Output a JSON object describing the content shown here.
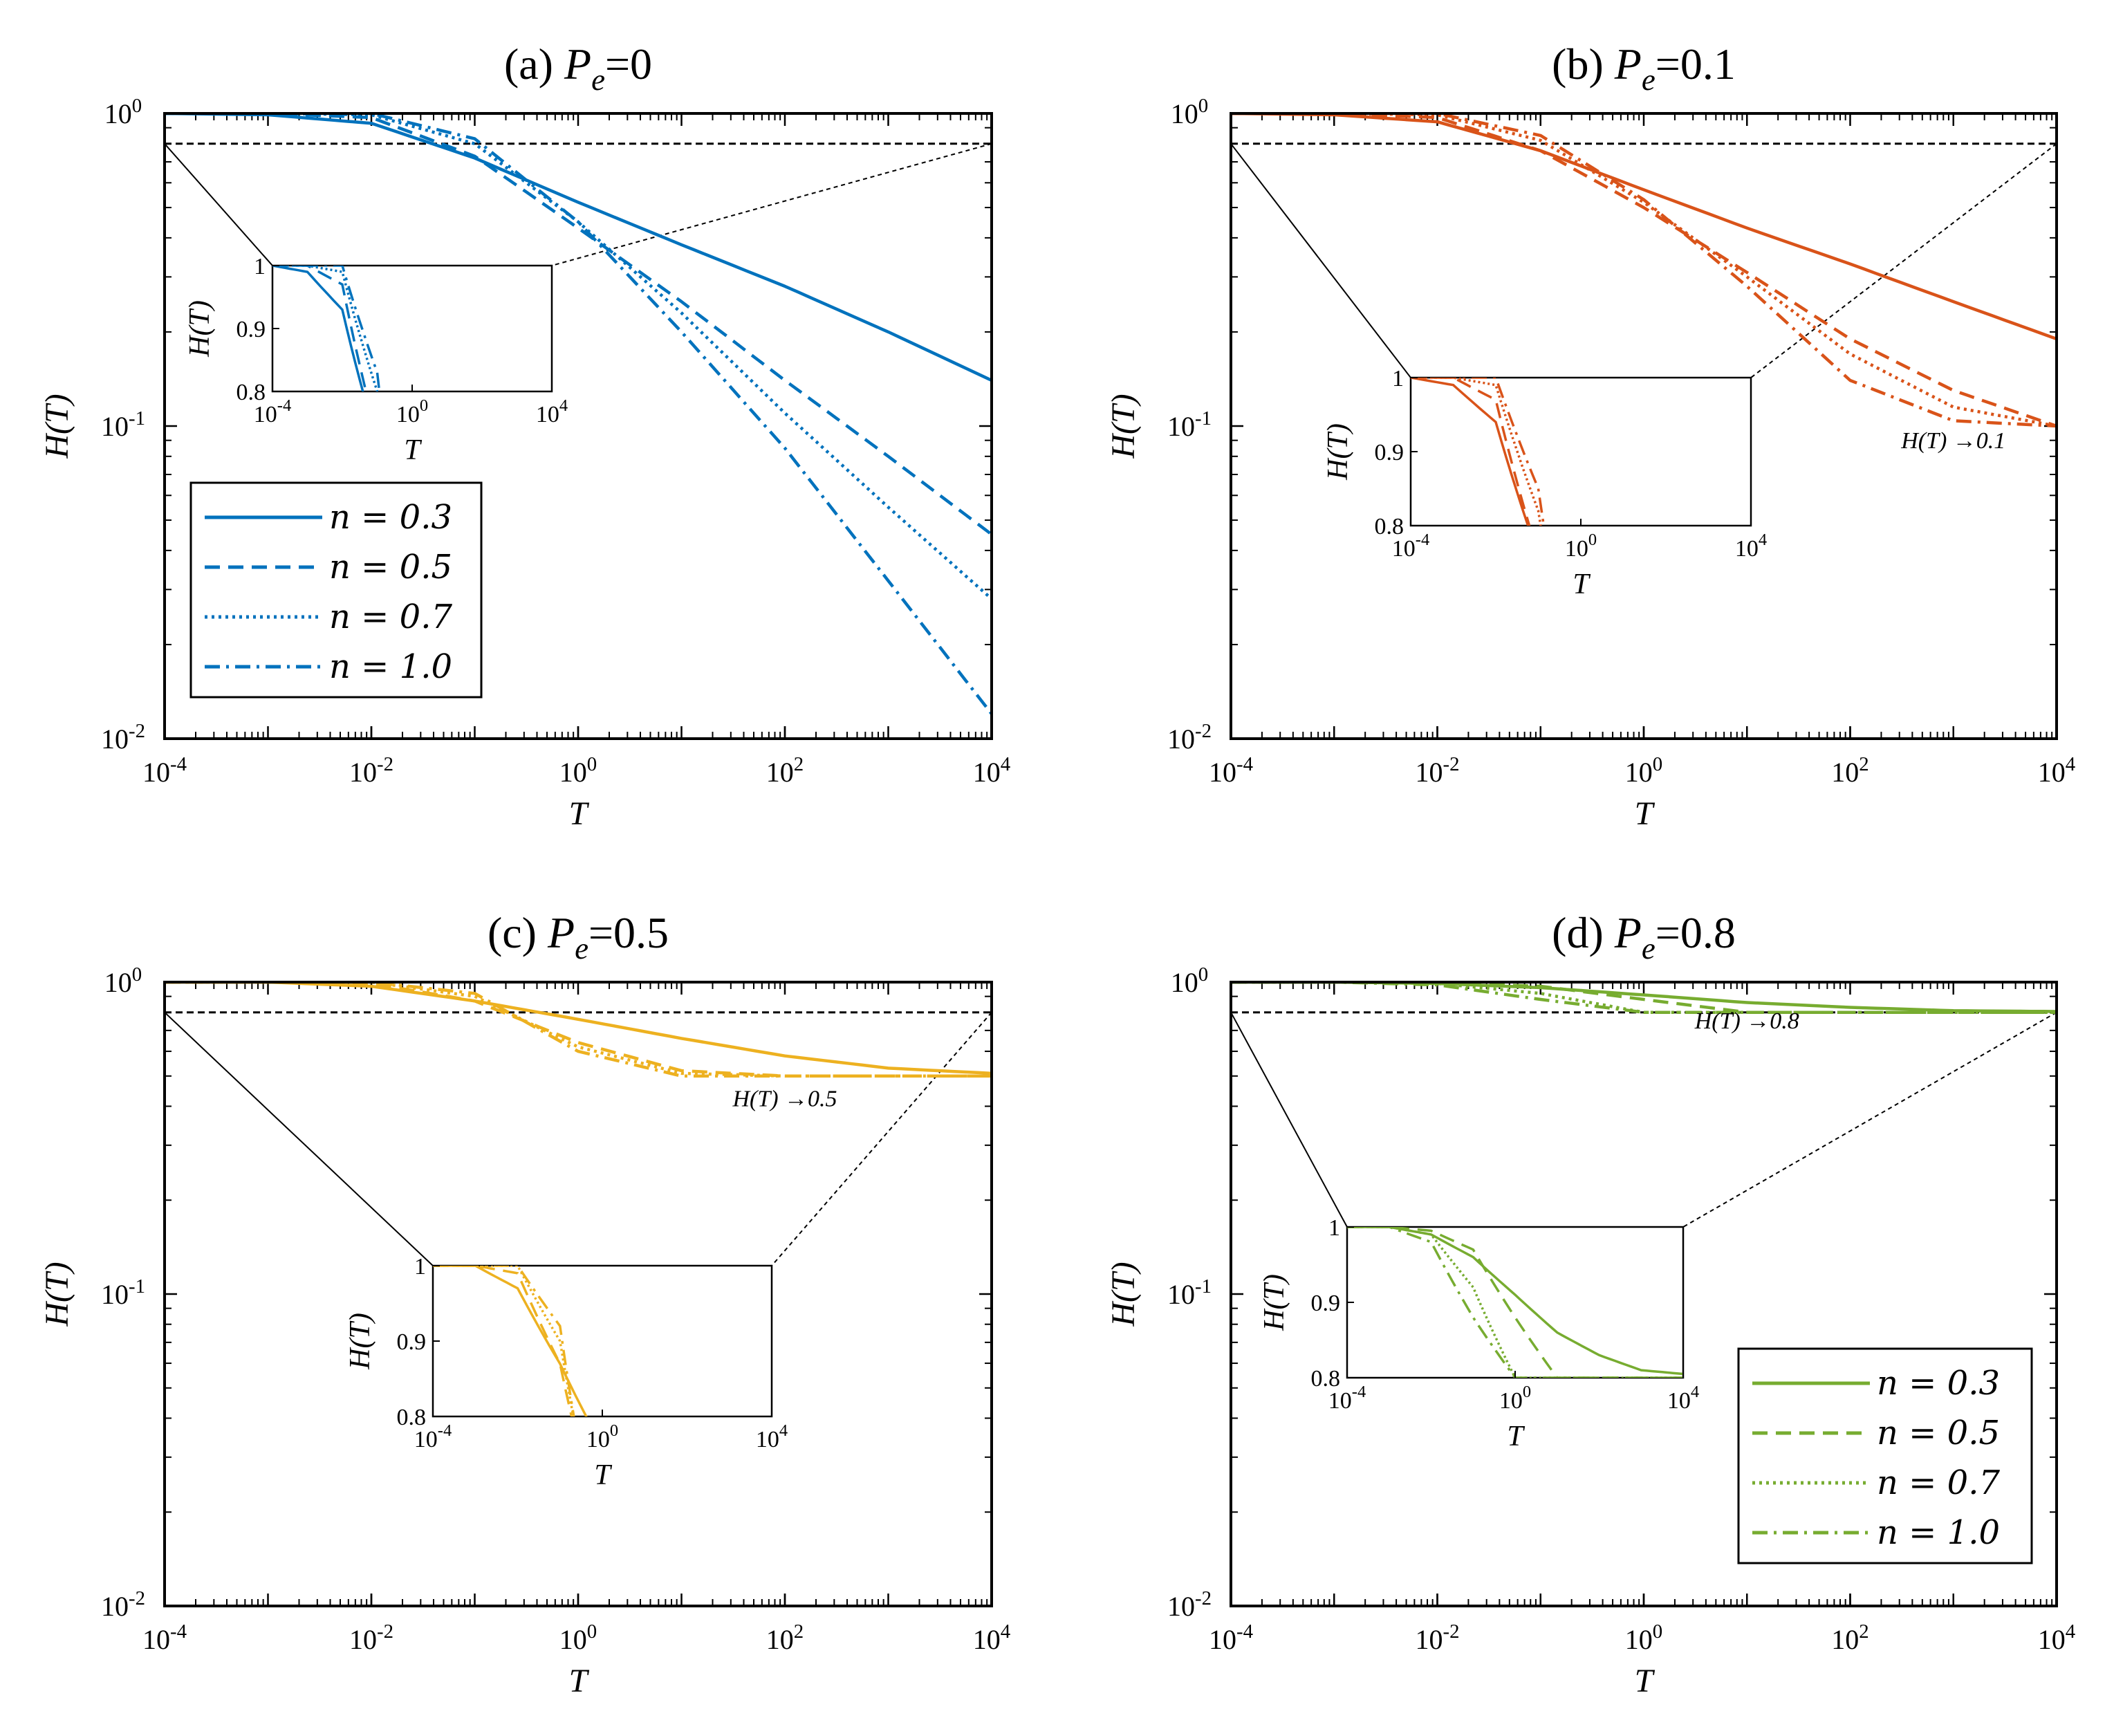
{
  "figure": {
    "common": {
      "x_scale": "log",
      "y_scale": "log",
      "xlim": [
        0.0001,
        10000
      ],
      "ylim": [
        0.01,
        1
      ],
      "xlabel": "T",
      "ylabel": "H(T)",
      "x_ticks": [
        {
          "value": 0.0001,
          "base": "10",
          "exp": "-4"
        },
        {
          "value": 0.01,
          "base": "10",
          "exp": "-2"
        },
        {
          "value": 1,
          "base": "10",
          "exp": "0"
        },
        {
          "value": 100,
          "base": "10",
          "exp": "2"
        },
        {
          "value": 10000,
          "base": "10",
          "exp": "4"
        }
      ],
      "y_ticks": [
        {
          "value": 0.01,
          "base": "10",
          "exp": "-2"
        },
        {
          "value": 0.1,
          "base": "10",
          "exp": "-1"
        },
        {
          "value": 1,
          "base": "10",
          "exp": "0"
        }
      ],
      "reference_line": {
        "y": 0.8,
        "style": "dashed",
        "color": "#000000"
      },
      "inset": {
        "xlim": [
          0.0001,
          10000
        ],
        "ylim": [
          0.8,
          1.0
        ],
        "x_ticks": [
          {
            "value": 0.0001,
            "base": "10",
            "exp": "-4"
          },
          {
            "value": 1,
            "base": "10",
            "exp": "0"
          },
          {
            "value": 10000,
            "base": "10",
            "exp": "4"
          }
        ],
        "y_ticks": [
          {
            "value": 0.8,
            "label": "0.8"
          },
          {
            "value": 0.9,
            "label": "0.9"
          },
          {
            "value": 1.0,
            "label": "1"
          }
        ],
        "xlabel": "T",
        "ylabel": "H(T)"
      },
      "legend_entries": [
        {
          "text": "n = 0.3",
          "style": "solid"
        },
        {
          "text": "n = 0.5",
          "style": "dashed"
        },
        {
          "text": "n = 0.7",
          "style": "dotted"
        },
        {
          "text": "n = 1.0",
          "style": "dashdot"
        }
      ]
    }
  },
  "chart_data": [
    {
      "type": "line",
      "panel": "a",
      "title": {
        "prefix": "(a) ",
        "var": "P",
        "sub": "e",
        "suffix": "=0"
      },
      "Pe": 0,
      "color": "#0072BD",
      "annotation": null,
      "series": [
        {
          "name": "n = 0.3",
          "style": "solid",
          "x": [
            0.0001,
            0.001,
            0.01,
            0.1,
            1,
            10,
            100,
            1000,
            10000
          ],
          "y": [
            1.0,
            0.99,
            0.93,
            0.72,
            0.52,
            0.38,
            0.28,
            0.2,
            0.14
          ]
        },
        {
          "name": "n = 0.5",
          "style": "dashed",
          "x": [
            0.0001,
            0.001,
            0.01,
            0.1,
            1,
            10,
            100,
            1000,
            10000
          ],
          "y": [
            1.0,
            1.0,
            0.97,
            0.73,
            0.43,
            0.25,
            0.14,
            0.08,
            0.045
          ]
        },
        {
          "name": "n = 0.7",
          "style": "dotted",
          "x": [
            0.0001,
            0.001,
            0.01,
            0.1,
            1,
            10,
            100,
            1000,
            10000
          ],
          "y": [
            1.0,
            1.0,
            0.99,
            0.8,
            0.45,
            0.23,
            0.11,
            0.055,
            0.028
          ]
        },
        {
          "name": "n = 1.0",
          "style": "dashdot",
          "x": [
            0.0001,
            0.001,
            0.01,
            0.1,
            1,
            10,
            100,
            1000,
            10000
          ],
          "y": [
            1.0,
            1.0,
            1.0,
            0.83,
            0.45,
            0.2,
            0.085,
            0.032,
            0.012
          ]
        }
      ]
    },
    {
      "type": "line",
      "panel": "b",
      "title": {
        "prefix": "(b) ",
        "var": "P",
        "sub": "e",
        "suffix": "=0.1"
      },
      "Pe": 0.1,
      "color": "#D95319",
      "annotation": {
        "text": "H(T) →0.1",
        "x": 1000,
        "y": 0.085
      },
      "series": [
        {
          "name": "n = 0.3",
          "style": "solid",
          "x": [
            0.0001,
            0.001,
            0.01,
            0.1,
            1,
            10,
            100,
            1000,
            10000
          ],
          "y": [
            1.0,
            0.99,
            0.94,
            0.76,
            0.57,
            0.43,
            0.33,
            0.25,
            0.19
          ]
        },
        {
          "name": "n = 0.5",
          "style": "dashed",
          "x": [
            0.0001,
            0.001,
            0.01,
            0.1,
            1,
            10,
            100,
            1000,
            10000
          ],
          "y": [
            1.0,
            1.0,
            0.97,
            0.76,
            0.5,
            0.31,
            0.19,
            0.13,
            0.1
          ]
        },
        {
          "name": "n = 0.7",
          "style": "dotted",
          "x": [
            0.0001,
            0.001,
            0.01,
            0.1,
            1,
            10,
            100,
            1000,
            10000
          ],
          "y": [
            1.0,
            1.0,
            0.99,
            0.82,
            0.52,
            0.3,
            0.17,
            0.115,
            0.1
          ]
        },
        {
          "name": "n = 1.0",
          "style": "dashdot",
          "x": [
            0.0001,
            0.001,
            0.01,
            0.1,
            1,
            10,
            100,
            1000,
            10000
          ],
          "y": [
            1.0,
            1.0,
            1.0,
            0.85,
            0.53,
            0.28,
            0.14,
            0.104,
            0.1
          ]
        }
      ]
    },
    {
      "type": "line",
      "panel": "c",
      "title": {
        "prefix": "(c) ",
        "var": "P",
        "sub": "e",
        "suffix": "=0.5"
      },
      "Pe": 0.5,
      "color": "#EDB120",
      "annotation": {
        "text": "H(T) →0.5",
        "x": 100,
        "y": 0.4
      },
      "series": [
        {
          "name": "n = 0.3",
          "style": "solid",
          "x": [
            0.0001,
            0.001,
            0.01,
            0.1,
            1,
            10,
            100,
            1000,
            10000
          ],
          "y": [
            1.0,
            1.0,
            0.97,
            0.87,
            0.76,
            0.66,
            0.58,
            0.53,
            0.51
          ]
        },
        {
          "name": "n = 0.5",
          "style": "dashed",
          "x": [
            0.0001,
            0.001,
            0.01,
            0.1,
            1,
            10,
            100,
            1000,
            10000
          ],
          "y": [
            1.0,
            1.0,
            0.99,
            0.87,
            0.64,
            0.52,
            0.5,
            0.5,
            0.5
          ]
        },
        {
          "name": "n = 0.7",
          "style": "dotted",
          "x": [
            0.0001,
            0.001,
            0.01,
            0.1,
            1,
            10,
            100,
            1000,
            10000
          ],
          "y": [
            1.0,
            1.0,
            1.0,
            0.9,
            0.62,
            0.51,
            0.5,
            0.5,
            0.5
          ]
        },
        {
          "name": "n = 1.0",
          "style": "dashdot",
          "x": [
            0.0001,
            0.001,
            0.01,
            0.1,
            1,
            10,
            100,
            1000,
            10000
          ],
          "y": [
            1.0,
            1.0,
            1.0,
            0.92,
            0.6,
            0.5,
            0.5,
            0.5,
            0.5
          ]
        }
      ]
    },
    {
      "type": "line",
      "panel": "d",
      "title": {
        "prefix": "(d) ",
        "var": "P",
        "sub": "e",
        "suffix": "=0.8"
      },
      "Pe": 0.8,
      "color": "#77AC30",
      "annotation": {
        "text": "H(T) →0.8",
        "x": 10,
        "y": 0.71
      },
      "series": [
        {
          "name": "n = 0.3",
          "style": "solid",
          "x": [
            0.0001,
            0.001,
            0.01,
            0.1,
            1,
            10,
            100,
            1000,
            10000
          ],
          "y": [
            1.0,
            1.0,
            0.99,
            0.96,
            0.91,
            0.86,
            0.83,
            0.81,
            0.805
          ]
        },
        {
          "name": "n = 0.5",
          "style": "dashed",
          "x": [
            0.0001,
            0.001,
            0.01,
            0.1,
            1,
            10,
            100,
            1000,
            10000
          ],
          "y": [
            1.0,
            1.0,
            0.995,
            0.97,
            0.88,
            0.8,
            0.8,
            0.8,
            0.8
          ]
        },
        {
          "name": "n = 0.7",
          "style": "dotted",
          "x": [
            0.0001,
            0.001,
            0.01,
            0.1,
            1,
            10,
            100,
            1000,
            10000
          ],
          "y": [
            1.0,
            1.0,
            0.99,
            0.92,
            0.8,
            0.8,
            0.8,
            0.8,
            0.8
          ]
        },
        {
          "name": "n = 1.0",
          "style": "dashdot",
          "x": [
            0.0001,
            0.001,
            0.01,
            0.1,
            1,
            10,
            100,
            1000,
            10000
          ],
          "y": [
            1.0,
            1.0,
            0.98,
            0.88,
            0.8,
            0.8,
            0.8,
            0.8,
            0.8
          ]
        }
      ]
    }
  ]
}
